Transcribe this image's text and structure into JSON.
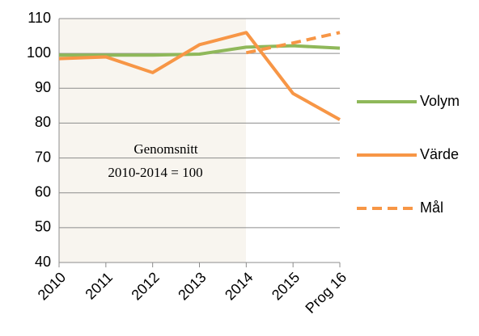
{
  "chart_data": {
    "type": "line",
    "categories": [
      "2010",
      "2011",
      "2012",
      "2013",
      "2014",
      "2015",
      "Prog 16"
    ],
    "series": [
      {
        "name": "Volym",
        "color": "#8fb85a",
        "dash": false,
        "values": [
          99.5,
          99.5,
          99.5,
          99.8,
          101.8,
          102.2,
          101.5
        ]
      },
      {
        "name": "Värde",
        "color": "#f79646",
        "dash": false,
        "values": [
          98.5,
          99,
          94.5,
          102.5,
          106,
          88.5,
          81
        ]
      },
      {
        "name": "Mål",
        "color": "#f79646",
        "dash": true,
        "values": [
          null,
          null,
          null,
          null,
          100.2,
          103,
          106
        ]
      }
    ],
    "annotation": [
      "Genomsnitt",
      "2010-2014 = 100"
    ],
    "ylim": [
      40,
      110
    ],
    "yticks": [
      40,
      50,
      60,
      70,
      80,
      90,
      100,
      110
    ],
    "grid": true,
    "legend": "right"
  }
}
